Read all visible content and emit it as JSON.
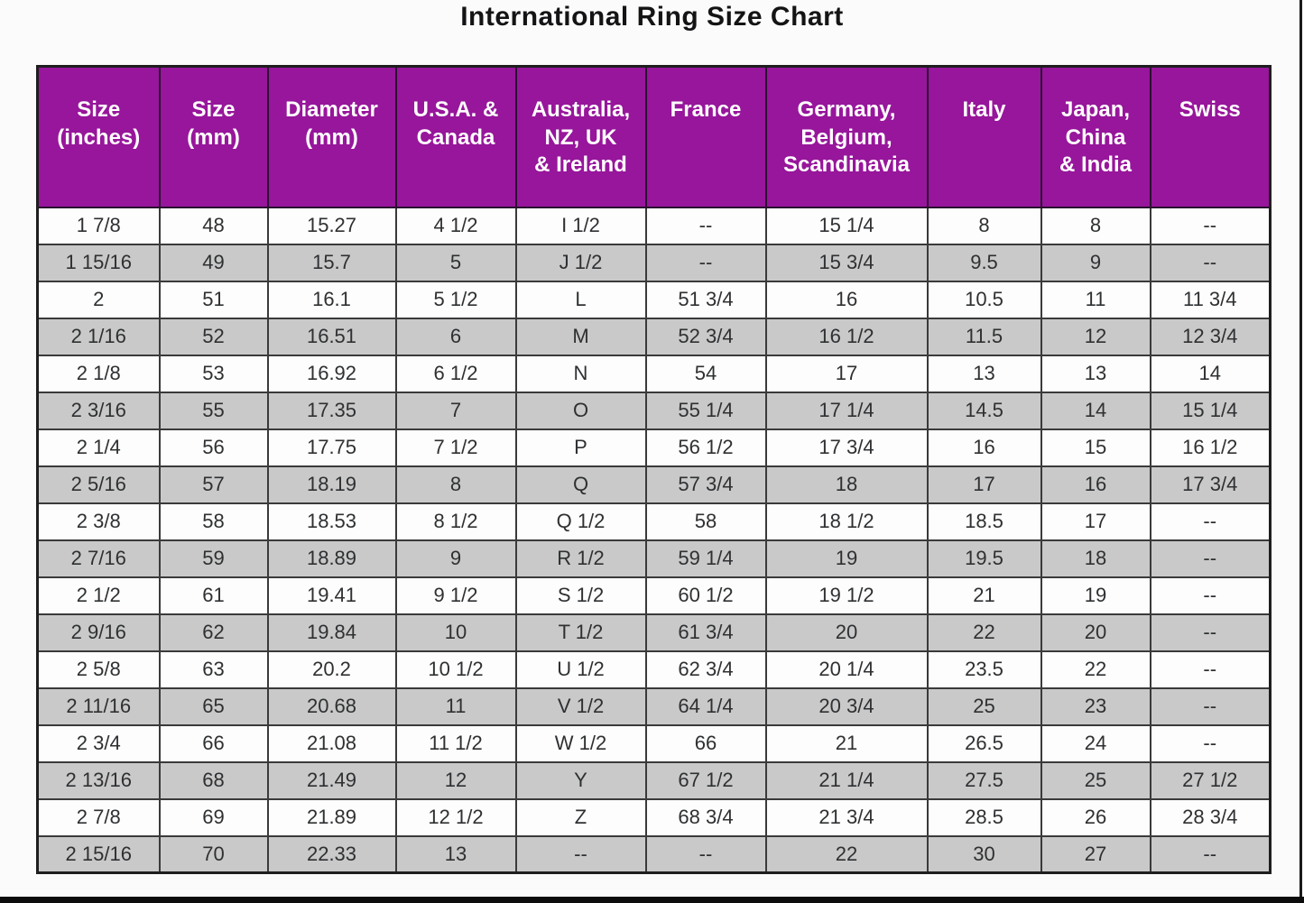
{
  "title": "International Ring Size Chart",
  "chart_data": {
    "type": "table",
    "title": "International Ring Size Chart",
    "columns": [
      "Size\n(inches)",
      "Size\n(mm)",
      "Diameter\n(mm)",
      "U.S.A. &\nCanada",
      "Australia,\nNZ, UK\n& Ireland",
      "France",
      "Germany,\nBelgium,\nScandinavia",
      "Italy",
      "Japan,\nChina\n& India",
      "Swiss"
    ],
    "rows": [
      [
        "1 7/8",
        "48",
        "15.27",
        "4 1/2",
        "I 1/2",
        "--",
        "15 1/4",
        "8",
        "8",
        "--"
      ],
      [
        "1 15/16",
        "49",
        "15.7",
        "5",
        "J 1/2",
        "--",
        "15 3/4",
        "9.5",
        "9",
        "--"
      ],
      [
        "2",
        "51",
        "16.1",
        "5 1/2",
        "L",
        "51 3/4",
        "16",
        "10.5",
        "11",
        "11 3/4"
      ],
      [
        "2 1/16",
        "52",
        "16.51",
        "6",
        "M",
        "52 3/4",
        "16 1/2",
        "11.5",
        "12",
        "12 3/4"
      ],
      [
        "2 1/8",
        "53",
        "16.92",
        "6 1/2",
        "N",
        "54",
        "17",
        "13",
        "13",
        "14"
      ],
      [
        "2 3/16",
        "55",
        "17.35",
        "7",
        "O",
        "55 1/4",
        "17 1/4",
        "14.5",
        "14",
        "15 1/4"
      ],
      [
        "2 1/4",
        "56",
        "17.75",
        "7 1/2",
        "P",
        "56 1/2",
        "17 3/4",
        "16",
        "15",
        "16 1/2"
      ],
      [
        "2 5/16",
        "57",
        "18.19",
        "8",
        "Q",
        "57 3/4",
        "18",
        "17",
        "16",
        "17 3/4"
      ],
      [
        "2 3/8",
        "58",
        "18.53",
        "8 1/2",
        "Q 1/2",
        "58",
        "18 1/2",
        "18.5",
        "17",
        "--"
      ],
      [
        "2 7/16",
        "59",
        "18.89",
        "9",
        "R 1/2",
        "59 1/4",
        "19",
        "19.5",
        "18",
        "--"
      ],
      [
        "2 1/2",
        "61",
        "19.41",
        "9 1/2",
        "S 1/2",
        "60 1/2",
        "19 1/2",
        "21",
        "19",
        "--"
      ],
      [
        "2 9/16",
        "62",
        "19.84",
        "10",
        "T 1/2",
        "61 3/4",
        "20",
        "22",
        "20",
        "--"
      ],
      [
        "2 5/8",
        "63",
        "20.2",
        "10 1/2",
        "U 1/2",
        "62 3/4",
        "20 1/4",
        "23.5",
        "22",
        "--"
      ],
      [
        "2 11/16",
        "65",
        "20.68",
        "11",
        "V 1/2",
        "64 1/4",
        "20 3/4",
        "25",
        "23",
        "--"
      ],
      [
        "2 3/4",
        "66",
        "21.08",
        "11 1/2",
        "W 1/2",
        "66",
        "21",
        "26.5",
        "24",
        "--"
      ],
      [
        "2 13/16",
        "68",
        "21.49",
        "12",
        "Y",
        "67 1/2",
        "21 1/4",
        "27.5",
        "25",
        "27 1/2"
      ],
      [
        "2 7/8",
        "69",
        "21.89",
        "12 1/2",
        "Z",
        "68 3/4",
        "21 3/4",
        "28.5",
        "26",
        "28 3/4"
      ],
      [
        "2 15/16",
        "70",
        "22.33",
        "13",
        "--",
        "--",
        "22",
        "30",
        "27",
        "--"
      ]
    ]
  },
  "colors": {
    "header_bg": "#97169B",
    "header_text": "#ffffff",
    "row_bg": "#fdfdfd",
    "row_alt_bg": "#c9c9c9",
    "border": "#3a3a3a"
  }
}
